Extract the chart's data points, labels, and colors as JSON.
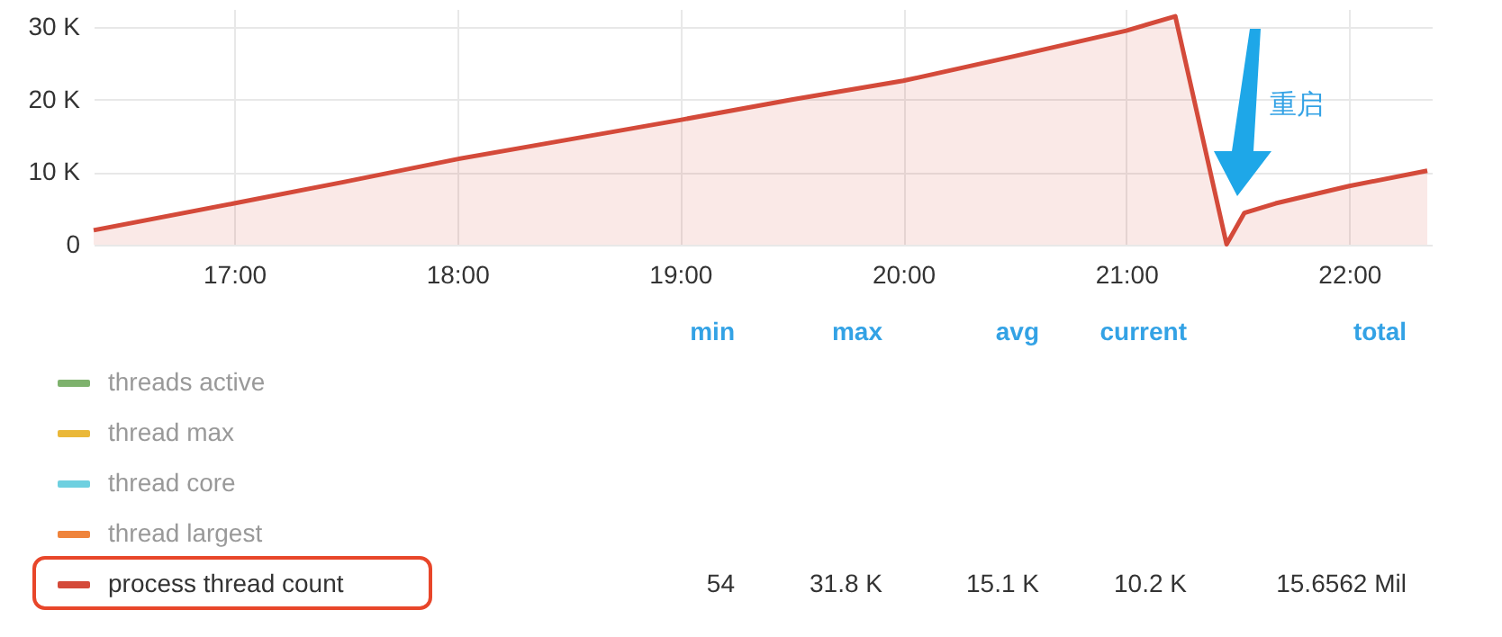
{
  "chart_data": {
    "type": "area",
    "x": [
      16.37,
      17,
      17.5,
      18,
      18.5,
      19,
      19.5,
      20,
      20.5,
      21,
      21.22,
      21.45,
      21.53,
      21.67,
      22,
      22.35
    ],
    "series": [
      {
        "name": "threads active",
        "color": "#7eb26d",
        "values": [
          null,
          null,
          null,
          null,
          null,
          null,
          null,
          null,
          null,
          null,
          null,
          null,
          null,
          null,
          null,
          null
        ]
      },
      {
        "name": "thread max",
        "color": "#eab839",
        "values": [
          null,
          null,
          null,
          null,
          null,
          null,
          null,
          null,
          null,
          null,
          null,
          null,
          null,
          null,
          null,
          null
        ]
      },
      {
        "name": "thread core",
        "color": "#6ed0e0",
        "values": [
          null,
          null,
          null,
          null,
          null,
          null,
          null,
          null,
          null,
          null,
          null,
          null,
          null,
          null,
          null,
          null
        ]
      },
      {
        "name": "thread largest",
        "color": "#ef843c",
        "values": [
          null,
          null,
          null,
          null,
          null,
          null,
          null,
          null,
          null,
          null,
          null,
          null,
          null,
          null,
          null,
          null
        ]
      },
      {
        "name": "process thread count",
        "color": "#d44a3a",
        "values": [
          2000,
          5700,
          8700,
          11800,
          14500,
          17200,
          20000,
          22600,
          26000,
          29500,
          31500,
          54,
          4400,
          5700,
          8100,
          10200
        ]
      }
    ],
    "xlim": [
      16.37,
      22.37
    ],
    "xticks": [
      {
        "value": 17,
        "label": "17:00"
      },
      {
        "value": 18,
        "label": "18:00"
      },
      {
        "value": 19,
        "label": "19:00"
      },
      {
        "value": 20,
        "label": "20:00"
      },
      {
        "value": 21,
        "label": "21:00"
      },
      {
        "value": 22,
        "label": "22:00"
      }
    ],
    "ylim": [
      0,
      32500
    ],
    "yticks": [
      0,
      {
        "value": 10000,
        "label": "10 K"
      },
      {
        "value": 20000,
        "label": "20 K"
      },
      {
        "value": 30000,
        "label": "30 K"
      }
    ],
    "grid": true,
    "legend": "bottom",
    "marker": "none",
    "line_style": "solid",
    "annotations": [
      "重启",
      "min",
      "max",
      "avg",
      "current",
      "total",
      "54",
      "31.8 K",
      "15.1 K",
      "10.2 K",
      "15.6562 Mil"
    ]
  }
}
